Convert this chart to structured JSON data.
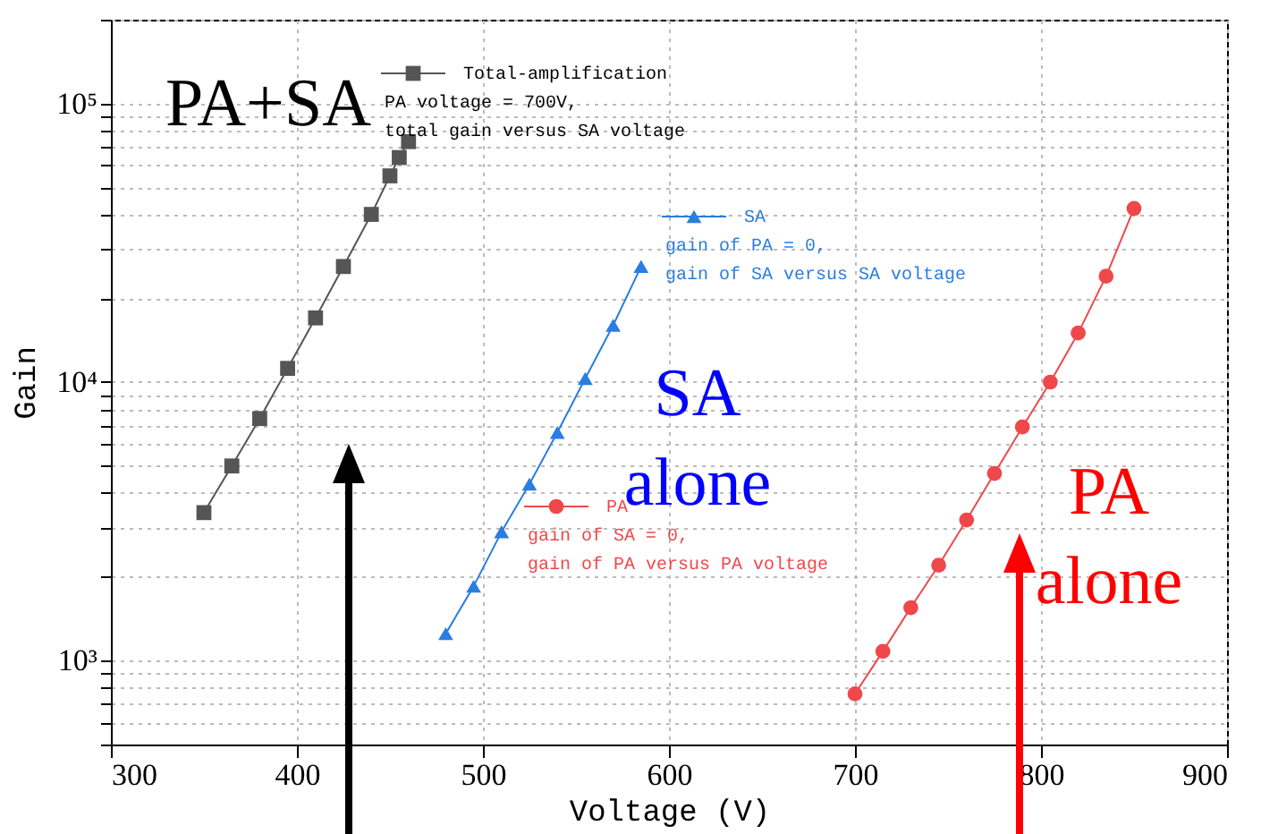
{
  "chart_data": {
    "type": "line",
    "xlabel": "Voltage (V)",
    "ylabel": "Gain",
    "log": "y",
    "grid": true,
    "legend": "top",
    "marker": "circle",
    "line_style": "solid",
    "xlim": [
      300,
      900
    ],
    "xticks": [
      300,
      400,
      500,
      600,
      700,
      800,
      900
    ],
    "ylim": [
      500,
      200000
    ],
    "yticks": [
      {
        "value": 500,
        "label": null
      },
      {
        "value": 600,
        "label": null
      },
      {
        "value": 700,
        "label": null
      },
      {
        "value": 800,
        "label": null
      },
      {
        "value": 900,
        "label": null
      },
      {
        "value": 1000,
        "label": "10³"
      },
      {
        "value": 2000,
        "label": null
      },
      {
        "value": 3000,
        "label": null
      },
      {
        "value": 4000,
        "label": null
      },
      {
        "value": 5000,
        "label": null
      },
      {
        "value": 6000,
        "label": null
      },
      {
        "value": 7000,
        "label": null
      },
      {
        "value": 8000,
        "label": null
      },
      {
        "value": 9000,
        "label": null
      },
      {
        "value": 10000,
        "label": "10⁴"
      },
      {
        "value": 20000,
        "label": null
      },
      {
        "value": 30000,
        "label": null
      },
      {
        "value": 40000,
        "label": null
      },
      {
        "value": 50000,
        "label": null
      },
      {
        "value": 60000,
        "label": null
      },
      {
        "value": 70000,
        "label": null
      },
      {
        "value": 80000,
        "label": null
      },
      {
        "value": 90000,
        "label": null
      },
      {
        "value": 100000,
        "label": "10⁵"
      },
      {
        "value": 200000,
        "label": null
      }
    ],
    "series": [
      {
        "name": "Total-amplification",
        "color": "#555555",
        "marker": "square",
        "x": [
          350,
          365,
          380,
          395,
          410,
          425,
          440,
          450,
          455,
          460
        ],
        "values": [
          3400,
          5000,
          7400,
          11200,
          17000,
          26000,
          40000,
          55000,
          64000,
          73000
        ]
      },
      {
        "name": "SA",
        "color": "#2a7de1",
        "marker": "triangle",
        "x": [
          480,
          495,
          510,
          525,
          540,
          555,
          570,
          585
        ],
        "values": [
          1250,
          1850,
          2900,
          4300,
          6600,
          10300,
          16000,
          26000
        ]
      },
      {
        "name": "PA",
        "color": "#f0474a",
        "marker": "circle",
        "x": [
          700,
          715,
          730,
          745,
          760,
          775,
          790,
          805,
          820,
          835,
          850
        ],
        "values": [
          760,
          1080,
          1550,
          2200,
          3200,
          4700,
          6900,
          10000,
          15000,
          24000,
          42000
        ]
      }
    ],
    "annotations": [
      "PA voltage = 700V, total gain versus SA voltage",
      "gain of PA = 0, gain of SA versus SA voltage",
      "gain of SA = 0, gain of PA versus PA voltage",
      "PA+SA",
      "SA alone",
      "PA alone"
    ]
  }
}
